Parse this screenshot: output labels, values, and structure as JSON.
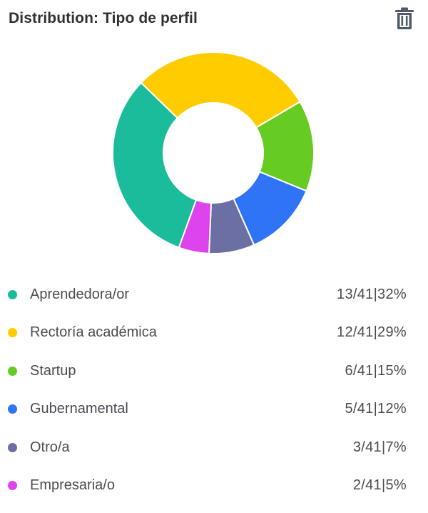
{
  "header": {
    "title": "Distribution: Tipo de perfil",
    "delete_icon": "trash-icon"
  },
  "chart_data": {
    "type": "pie",
    "title": "Distribution: Tipo de perfil",
    "style": "donut",
    "total": 41,
    "slices": [
      {
        "label": "Aprendedora/or",
        "count": 13,
        "percent": 32,
        "color": "#1abc9c",
        "value_text": "13/41|32%"
      },
      {
        "label": "Rectoría académica",
        "count": 12,
        "percent": 29,
        "color": "#ffcc00",
        "value_text": "12/41|29%"
      },
      {
        "label": "Startup",
        "count": 6,
        "percent": 15,
        "color": "#66cc22",
        "value_text": "6/41|15%"
      },
      {
        "label": "Gubernamental",
        "count": 5,
        "percent": 12,
        "color": "#2f74f5",
        "value_text": "5/41|12%"
      },
      {
        "label": "Otro/a",
        "count": 3,
        "percent": 7,
        "color": "#6b6fa3",
        "value_text": "3/41|7%"
      },
      {
        "label": "Empresaria/o",
        "count": 2,
        "percent": 5,
        "color": "#dd44ee",
        "value_text": "2/41|5%"
      }
    ],
    "legend_position": "bottom"
  }
}
